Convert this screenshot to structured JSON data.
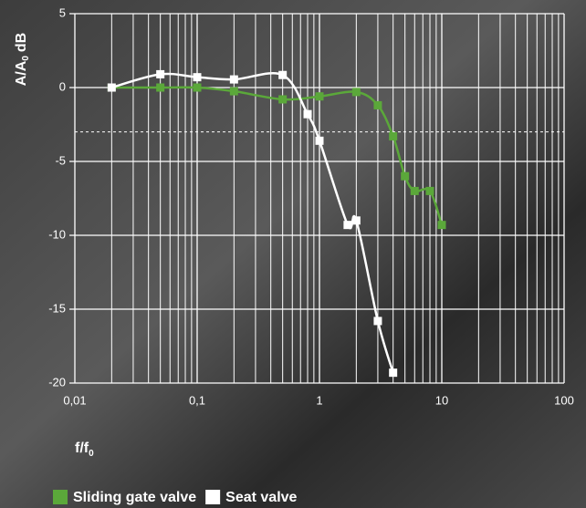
{
  "chart_data": {
    "type": "line",
    "y_label": {
      "main": "A/A",
      "sub": "0",
      "unit": "dB"
    },
    "x_label": {
      "main": "f/f",
      "sub": "0"
    },
    "log_x": true,
    "xlim": [
      0.01,
      100
    ],
    "xticks": [
      {
        "value": 0.01,
        "label": "0,01"
      },
      {
        "value": 0.1,
        "label": "0,1"
      },
      1,
      10,
      100
    ],
    "ylim": [
      -20,
      5
    ],
    "yticks": [
      5,
      0,
      -5,
      -10,
      -15,
      -20
    ],
    "grid": true,
    "minor_grid": true,
    "reference_line": -3,
    "legend": "bottom",
    "series": [
      {
        "name": "Sliding gate valve",
        "color": "#5ba83a",
        "x": [
          0.02,
          0.05,
          0.1,
          0.2,
          0.5,
          1,
          2,
          3,
          4,
          5,
          6,
          8,
          10
        ],
        "values": [
          0,
          0,
          0,
          -0.25,
          -0.8,
          -0.6,
          -0.3,
          -1.2,
          -3.3,
          -6.0,
          -7.0,
          -7.0,
          -9.3
        ]
      },
      {
        "name": "Seat valve",
        "color": "#ffffff",
        "x": [
          0.02,
          0.05,
          0.1,
          0.2,
          0.5,
          0.8,
          1,
          1.7,
          2,
          3,
          4
        ],
        "values": [
          0,
          0.9,
          0.7,
          0.55,
          0.85,
          -1.8,
          -3.6,
          -9.3,
          -9.0,
          -15.8,
          -19.3
        ]
      }
    ]
  }
}
